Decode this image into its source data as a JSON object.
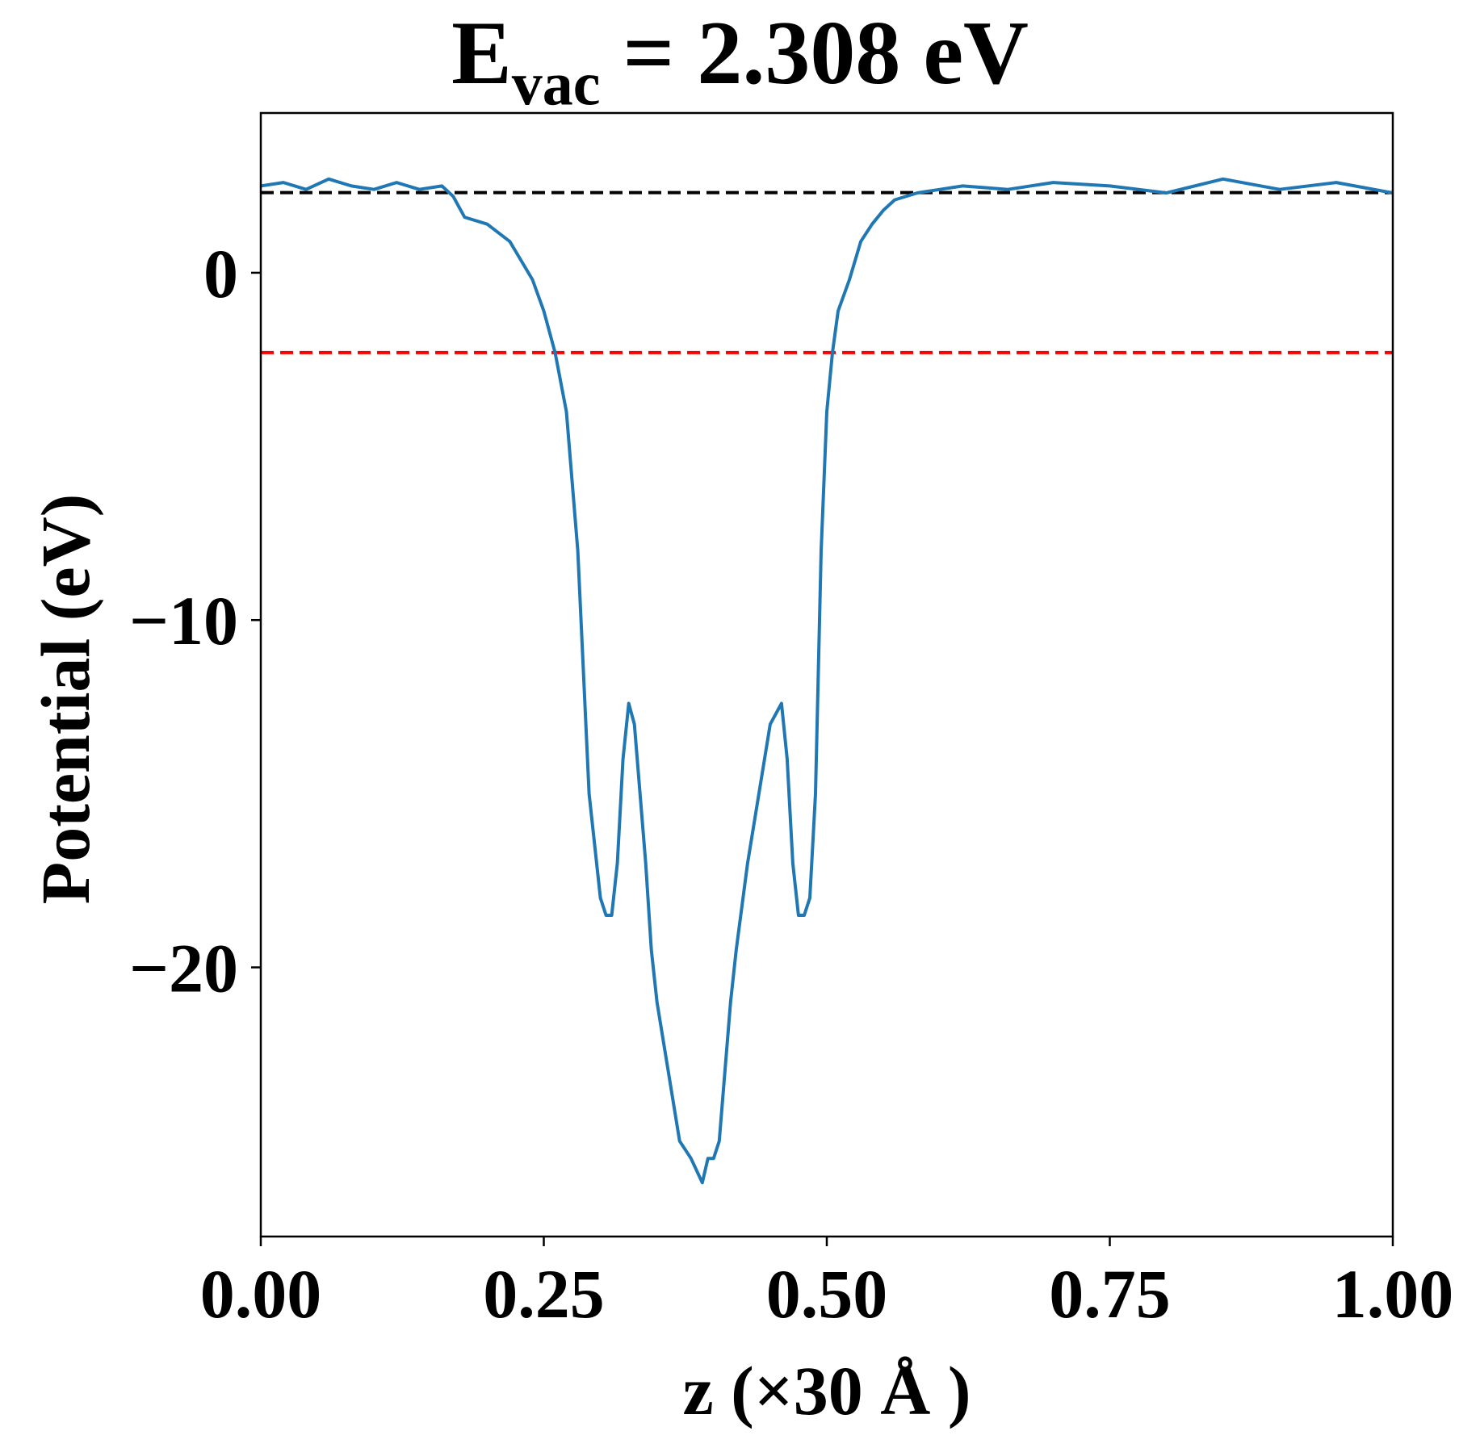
{
  "chart_data": {
    "type": "line",
    "title": {
      "main": "E",
      "subscript": "vac",
      "rest": " = 2.308 eV"
    },
    "xlabel": "z (×30 Å )",
    "ylabel": "Potential (eV)",
    "xlim": [
      0.0,
      1.0
    ],
    "ylim": [
      -27.75,
      4.6
    ],
    "xticks": [
      0.0,
      0.25,
      0.5,
      0.75,
      1.0
    ],
    "xtick_labels": [
      "0.00",
      "0.25",
      "0.50",
      "0.75",
      "1.00"
    ],
    "yticks": [
      0,
      -10,
      -20
    ],
    "ytick_labels": [
      "0",
      "−10",
      "−20"
    ],
    "grid": false,
    "reference_lines": [
      {
        "y": 2.308,
        "color": "#000000",
        "style": "dashed"
      },
      {
        "y": -2.3,
        "color": "#ff0000",
        "style": "dashed"
      }
    ],
    "series": [
      {
        "color": "#1f77b4",
        "x": [
          0.0,
          0.02,
          0.04,
          0.06,
          0.08,
          0.1,
          0.12,
          0.14,
          0.16,
          0.17,
          0.18,
          0.2,
          0.22,
          0.24,
          0.25,
          0.26,
          0.27,
          0.28,
          0.29,
          0.3,
          0.305,
          0.31,
          0.315,
          0.32,
          0.325,
          0.33,
          0.335,
          0.34,
          0.345,
          0.35,
          0.36,
          0.37,
          0.38,
          0.39,
          0.395,
          0.4,
          0.405,
          0.41,
          0.415,
          0.42,
          0.43,
          0.44,
          0.45,
          0.46,
          0.465,
          0.47,
          0.475,
          0.48,
          0.485,
          0.49,
          0.495,
          0.5,
          0.505,
          0.51,
          0.52,
          0.53,
          0.54,
          0.55,
          0.56,
          0.58,
          0.6,
          0.62,
          0.64,
          0.66,
          0.7,
          0.75,
          0.8,
          0.85,
          0.9,
          0.95,
          1.0
        ],
        "y": [
          2.5,
          2.6,
          2.4,
          2.7,
          2.5,
          2.4,
          2.6,
          2.4,
          2.5,
          2.2,
          1.6,
          1.4,
          0.9,
          -0.2,
          -1.1,
          -2.3,
          -4.0,
          -8.0,
          -15.0,
          -18.0,
          -18.5,
          -18.5,
          -17.0,
          -14.0,
          -12.4,
          -13.0,
          -15.0,
          -17.0,
          -19.5,
          -21.0,
          -23.0,
          -25.0,
          -25.5,
          -26.2,
          -25.5,
          -25.5,
          -25.0,
          -23.0,
          -21.0,
          -19.5,
          -17.0,
          -15.0,
          -13.0,
          -12.4,
          -14.0,
          -17.0,
          -18.5,
          -18.5,
          -18.0,
          -15.0,
          -8.0,
          -4.0,
          -2.3,
          -1.1,
          -0.2,
          0.9,
          1.4,
          1.8,
          2.1,
          2.3,
          2.4,
          2.5,
          2.45,
          2.4,
          2.6,
          2.5,
          2.3,
          2.7,
          2.4,
          2.6,
          2.3
        ]
      }
    ]
  }
}
